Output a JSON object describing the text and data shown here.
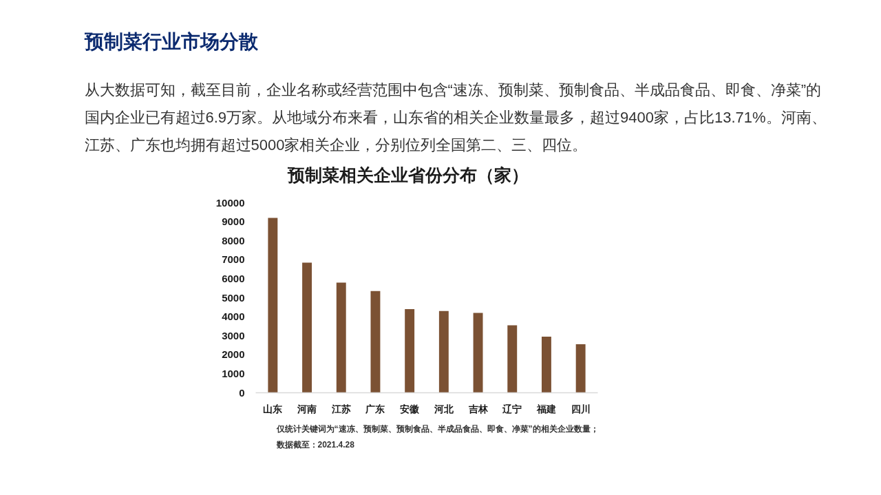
{
  "chart_data": {
    "type": "bar",
    "title": "预制菜相关企业省份分布（家）",
    "categories": [
      "山东",
      "河南",
      "江苏",
      "广东",
      "安徽",
      "河北",
      "吉林",
      "辽宁",
      "福建",
      "四川"
    ],
    "values": [
      9200,
      6850,
      5800,
      5350,
      4400,
      4300,
      4200,
      3550,
      2950,
      2550
    ],
    "color": "#7b5133",
    "ylim": [
      0,
      10000
    ],
    "yticks": [
      0,
      1000,
      2000,
      3000,
      4000,
      5000,
      6000,
      7000,
      8000,
      9000,
      10000
    ],
    "annotations": [
      "预制菜行业市场分散",
      "从大数据可知，截至目前，企业名称或经营范围中包含“速冻、预制菜、预制食品、半成品食品、即食、净菜”的国内企业已有超过6.9万家。从地域分布来看，山东省的相关企业数量最多，超过9400家，占比13.71%。河南、江苏、广东也均拥有超过5000家相关企业，分别位列全国第二、三、四位。",
      "仅统计关键词为“速冻、预制菜、预制食品、半成品食品、即食、净菜”的相关企业数量；",
      "数据截至：2021.4.28"
    ]
  }
}
